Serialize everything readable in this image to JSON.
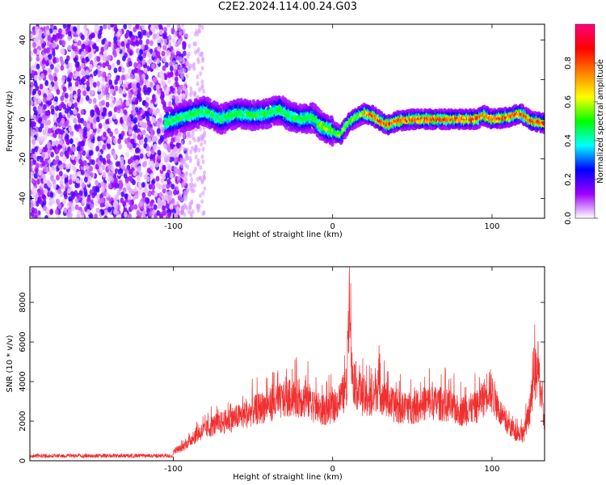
{
  "title": "C2E2.2024.114.00.24.G03",
  "chart_data": [
    {
      "type": "heatmap",
      "xlabel": "Height of straight line (km)",
      "ylabel": "Frequency (Hz)",
      "xlim": [
        -190,
        133
      ],
      "ylim": [
        -50,
        48
      ],
      "xticks": [
        -100,
        0,
        100
      ],
      "yticks": [
        -40,
        -20,
        0,
        20,
        40
      ],
      "colorbar": {
        "label": "Normalized spectral amplitude",
        "range": [
          0,
          1
        ],
        "ticks": [
          0.0,
          0.2,
          0.4,
          0.6,
          0.8
        ],
        "colormap": [
          "#ffffff",
          "#a000ff",
          "#0000ff",
          "#00ffff",
          "#00ff00",
          "#ffff00",
          "#ff8000",
          "#ff0000",
          "#ff0080"
        ]
      },
      "noise_region": [
        -190,
        -100
      ],
      "track": [
        [
          -105,
          -2
        ],
        [
          -90,
          2
        ],
        [
          -80,
          4
        ],
        [
          -70,
          0
        ],
        [
          -60,
          3
        ],
        [
          -50,
          2
        ],
        [
          -40,
          3
        ],
        [
          -33,
          5
        ],
        [
          -28,
          2
        ],
        [
          -20,
          0
        ],
        [
          -12,
          1
        ],
        [
          -8,
          -3
        ],
        [
          0,
          -6
        ],
        [
          5,
          -8
        ],
        [
          10,
          -2
        ],
        [
          15,
          1
        ],
        [
          20,
          3
        ],
        [
          25,
          2
        ],
        [
          30,
          -1
        ],
        [
          35,
          -3
        ],
        [
          40,
          -1
        ],
        [
          50,
          0
        ],
        [
          60,
          0
        ],
        [
          70,
          0
        ],
        [
          80,
          0
        ],
        [
          90,
          0
        ],
        [
          95,
          2
        ],
        [
          100,
          0
        ],
        [
          110,
          1
        ],
        [
          118,
          3
        ],
        [
          125,
          -1
        ],
        [
          133,
          -2
        ]
      ]
    },
    {
      "type": "line",
      "xlabel": "Height of straight line (km)",
      "ylabel": "SNR (10 * v/v)",
      "xlim": [
        -190,
        133
      ],
      "ylim": [
        0,
        9800
      ],
      "xticks": [
        -100,
        0,
        100
      ],
      "yticks": [
        0,
        2000,
        4000,
        6000,
        8000
      ],
      "color": "#f03030",
      "envelope": [
        [
          -190,
          300
        ],
        [
          -150,
          300
        ],
        [
          -110,
          300
        ],
        [
          -95,
          700
        ],
        [
          -85,
          1500
        ],
        [
          -75,
          2000
        ],
        [
          -65,
          2300
        ],
        [
          -55,
          2600
        ],
        [
          -45,
          3000
        ],
        [
          -35,
          3300
        ],
        [
          -25,
          3600
        ],
        [
          -15,
          3400
        ],
        [
          -8,
          2800
        ],
        [
          0,
          3000
        ],
        [
          5,
          3500
        ],
        [
          9,
          4200
        ],
        [
          10,
          8800
        ],
        [
          11,
          9800
        ],
        [
          12,
          5000
        ],
        [
          15,
          4200
        ],
        [
          20,
          3500
        ],
        [
          25,
          3300
        ],
        [
          28,
          4200
        ],
        [
          32,
          3600
        ],
        [
          40,
          3000
        ],
        [
          50,
          3000
        ],
        [
          60,
          3300
        ],
        [
          70,
          3200
        ],
        [
          80,
          2800
        ],
        [
          90,
          3000
        ],
        [
          95,
          3600
        ],
        [
          98,
          4200
        ],
        [
          102,
          3400
        ],
        [
          108,
          2200
        ],
        [
          115,
          1600
        ],
        [
          120,
          1500
        ],
        [
          124,
          3000
        ],
        [
          127,
          4800
        ],
        [
          129,
          5200
        ],
        [
          131,
          3500
        ],
        [
          133,
          1800
        ]
      ]
    }
  ]
}
